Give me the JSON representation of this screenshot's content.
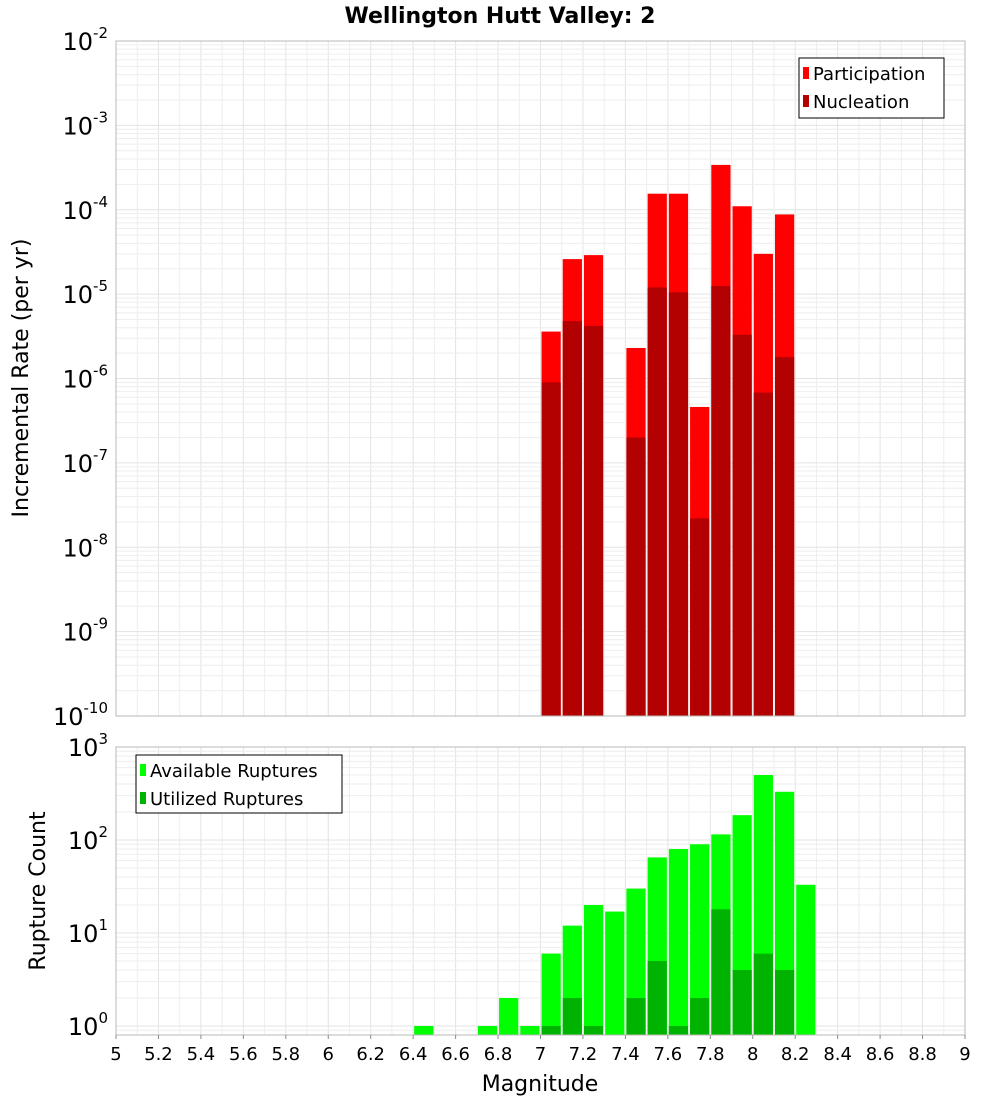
{
  "title": "Wellington Hutt Valley: 2",
  "colors": {
    "participation": "#ff0000",
    "nucleation": "#b30000",
    "available": "#00ff00",
    "utilized": "#00b300"
  },
  "chart_data": [
    {
      "type": "bar",
      "name": "rate",
      "ylabel": "Incremental Rate (per yr)",
      "yscale": "log",
      "ylim": [
        1e-10,
        0.01
      ],
      "xlim": [
        5,
        9
      ],
      "y_tick_labels": [
        {
          "base": "10",
          "exp": "-10"
        },
        {
          "base": "10",
          "exp": "-9"
        },
        {
          "base": "10",
          "exp": "-8"
        },
        {
          "base": "10",
          "exp": "-7"
        },
        {
          "base": "10",
          "exp": "-6"
        },
        {
          "base": "10",
          "exp": "-5"
        },
        {
          "base": "10",
          "exp": "-4"
        },
        {
          "base": "10",
          "exp": "-3"
        },
        {
          "base": "10",
          "exp": "-2"
        }
      ],
      "legend": {
        "placement": "top-right",
        "entries": [
          "Participation",
          "Nucleation"
        ]
      },
      "grid": true,
      "x": [
        7.05,
        7.15,
        7.25,
        7.45,
        7.55,
        7.65,
        7.75,
        7.85,
        7.95,
        8.05,
        8.15
      ],
      "series": [
        {
          "name": "Participation",
          "values": [
            3.6e-06,
            2.6e-05,
            2.9e-05,
            2.3e-06,
            0.000155,
            0.000155,
            4.6e-07,
            0.00034,
            0.00011,
            3e-05,
            8.8e-05
          ]
        },
        {
          "name": "Nucleation",
          "values": [
            9e-07,
            4.8e-06,
            4.2e-06,
            2e-07,
            1.2e-05,
            1.05e-05,
            2.2e-08,
            1.25e-05,
            3.3e-06,
            6.8e-07,
            1.8e-06
          ]
        }
      ]
    },
    {
      "type": "bar",
      "name": "count",
      "xlabel": "Magnitude",
      "ylabel": "Rupture Count",
      "yscale": "log",
      "ylim": [
        0.8,
        1000
      ],
      "xlim": [
        5,
        9
      ],
      "x_ticks": [
        "5",
        "5.2",
        "5.4",
        "5.6",
        "5.8",
        "6",
        "6.2",
        "6.4",
        "6.6",
        "6.8",
        "7",
        "7.2",
        "7.4",
        "7.6",
        "7.8",
        "8",
        "8.2",
        "8.4",
        "8.6",
        "8.8",
        "9"
      ],
      "y_tick_labels": [
        {
          "base": "10",
          "exp": "0"
        },
        {
          "base": "10",
          "exp": "1"
        },
        {
          "base": "10",
          "exp": "2"
        },
        {
          "base": "10",
          "exp": "3"
        }
      ],
      "legend": {
        "placement": "top-left",
        "entries": [
          "Available Ruptures",
          "Utilized Ruptures"
        ]
      },
      "grid": true,
      "x": [
        6.45,
        6.75,
        6.85,
        6.95,
        7.05,
        7.15,
        7.25,
        7.35,
        7.45,
        7.55,
        7.65,
        7.75,
        7.85,
        7.95,
        8.05,
        8.15,
        8.25
      ],
      "series": [
        {
          "name": "Available Ruptures",
          "values": [
            1,
            1,
            2,
            1,
            6,
            12,
            20,
            17,
            30,
            65,
            80,
            90,
            115,
            185,
            500,
            330,
            33
          ]
        },
        {
          "name": "Utilized Ruptures",
          "values": [
            0,
            0,
            0,
            0,
            1,
            2,
            1,
            0,
            2,
            5,
            1,
            2,
            18,
            4,
            6,
            4,
            0
          ]
        }
      ]
    }
  ]
}
